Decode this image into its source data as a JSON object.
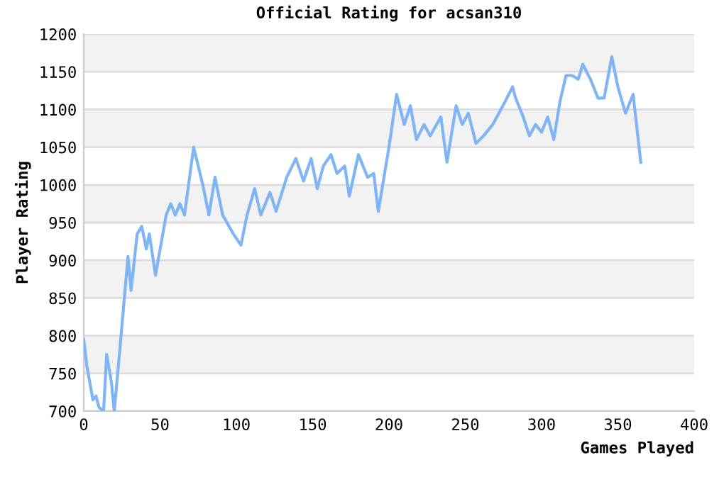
{
  "chart_data": {
    "type": "line",
    "title": "Official Rating for acsan310",
    "xlabel": "Games Played",
    "ylabel": "Player Rating",
    "xlim": [
      0,
      400
    ],
    "xticks": [
      0,
      50,
      100,
      150,
      200,
      250,
      300,
      350,
      400
    ],
    "ylim": [
      700,
      1200
    ],
    "yticks": [
      700,
      750,
      800,
      850,
      900,
      950,
      1000,
      1050,
      1100,
      1150,
      1200
    ],
    "grid": "y",
    "marker": "none",
    "line_style": "solid",
    "series": [
      {
        "color": "#7fb5f5",
        "x": [
          0,
          2,
          6,
          8,
          10,
          13,
          15,
          18,
          20,
          24,
          29,
          31,
          35,
          38,
          41,
          43,
          47,
          54,
          57,
          60,
          63,
          66,
          72,
          78,
          82,
          86,
          91,
          98,
          103,
          107,
          112,
          116,
          122,
          126,
          133,
          139,
          144,
          149,
          153,
          157,
          162,
          166,
          171,
          174,
          180,
          186,
          190,
          193,
          200,
          205,
          210,
          214,
          218,
          223,
          227,
          234,
          238,
          244,
          248,
          252,
          257,
          262,
          268,
          272,
          276,
          281,
          283,
          288,
          292,
          296,
          300,
          304,
          308,
          312,
          316,
          320,
          324,
          327,
          332,
          337,
          341,
          346,
          350,
          355,
          360,
          365
        ],
        "values": [
          795,
          760,
          715,
          720,
          705,
          700,
          775,
          740,
          700,
          790,
          905,
          860,
          935,
          945,
          915,
          935,
          880,
          960,
          975,
          960,
          975,
          960,
          1050,
          1000,
          960,
          1010,
          960,
          935,
          920,
          960,
          995,
          960,
          990,
          965,
          1010,
          1035,
          1005,
          1035,
          995,
          1025,
          1040,
          1015,
          1025,
          985,
          1040,
          1010,
          1015,
          965,
          1050,
          1120,
          1080,
          1105,
          1060,
          1080,
          1065,
          1090,
          1030,
          1105,
          1080,
          1095,
          1055,
          1065,
          1080,
          1095,
          1110,
          1130,
          1115,
          1090,
          1065,
          1080,
          1070,
          1090,
          1060,
          1110,
          1145,
          1145,
          1140,
          1160,
          1140,
          1115,
          1115,
          1170,
          1130,
          1095,
          1120,
          1030
        ]
      }
    ]
  }
}
